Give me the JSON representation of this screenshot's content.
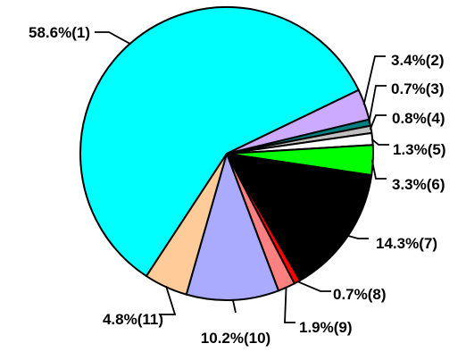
{
  "chart_data": {
    "type": "pie",
    "slices": [
      {
        "value": 58.6,
        "label": "58.6%(1)",
        "color": "#00FFFF"
      },
      {
        "value": 3.4,
        "label": "3.4%(2)",
        "color": "#CCAAFF"
      },
      {
        "value": 0.7,
        "label": "0.7%(3)",
        "color": "#008080"
      },
      {
        "value": 0.8,
        "label": "0.8%(4)",
        "color": "#C0C0C0"
      },
      {
        "value": 1.3,
        "label": "1.3%(5)",
        "color": "#FFFFFF"
      },
      {
        "value": 3.3,
        "label": "3.3%(6)",
        "color": "#00FF00"
      },
      {
        "value": 14.3,
        "label": "14.3%(7)",
        "color": "#000000"
      },
      {
        "value": 0.7,
        "label": "0.7%(8)",
        "color": "#FF0000"
      },
      {
        "value": 1.9,
        "label": "1.9%(9)",
        "color": "#FF8080"
      },
      {
        "value": 10.2,
        "label": "10.2%(10)",
        "color": "#AAAAFF"
      },
      {
        "value": 4.8,
        "label": "4.8%(11)",
        "color": "#FFCC99"
      }
    ]
  }
}
